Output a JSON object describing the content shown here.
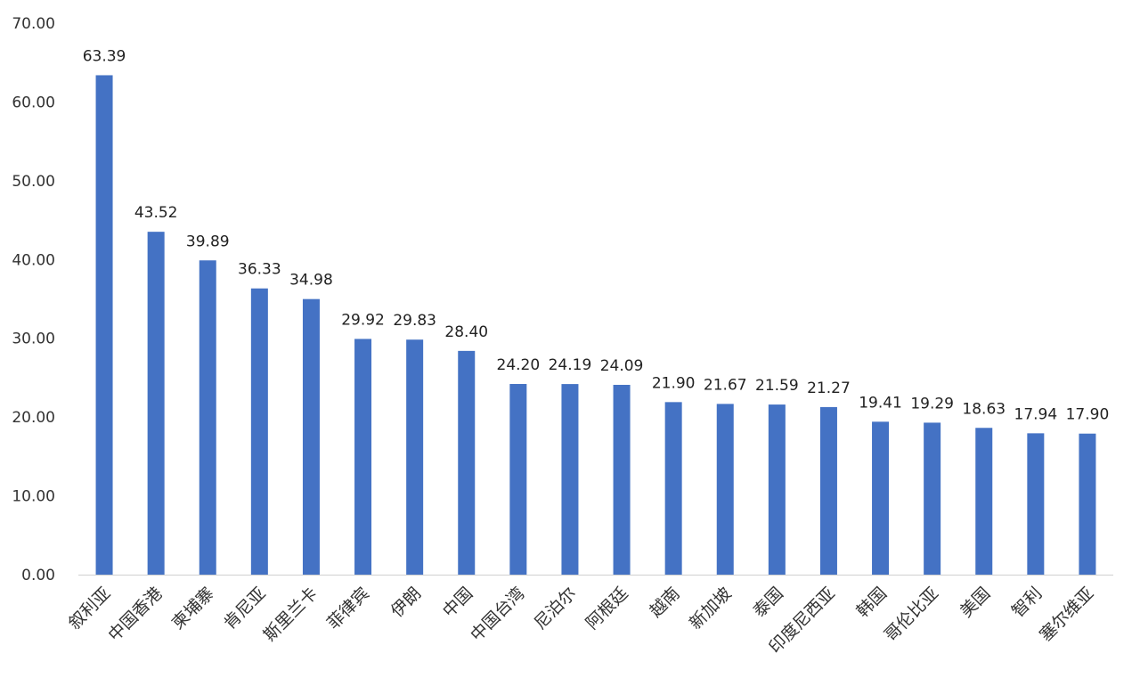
{
  "chart_data": {
    "type": "bar",
    "title": "",
    "xlabel": "",
    "ylabel": "",
    "ylim": [
      0,
      70
    ],
    "yticks": [
      "0.00",
      "10.00",
      "20.00",
      "30.00",
      "40.00",
      "50.00",
      "60.00",
      "70.00"
    ],
    "grid": false,
    "bar_color": "#4472C4",
    "categories": [
      "叙利亚",
      "中国香港",
      "柬埔寨",
      "肯尼亚",
      "斯里兰卡",
      "菲律宾",
      "伊朗",
      "中国",
      "中国台湾",
      "尼泊尔",
      "阿根廷",
      "越南",
      "新加坡",
      "泰国",
      "印度尼西亚",
      "韩国",
      "哥伦比亚",
      "美国",
      "智利",
      "塞尔维亚"
    ],
    "values": [
      63.39,
      43.52,
      39.89,
      36.33,
      34.98,
      29.92,
      29.83,
      28.4,
      24.2,
      24.19,
      24.09,
      21.9,
      21.67,
      21.59,
      21.27,
      19.41,
      19.29,
      18.63,
      17.94,
      17.9
    ],
    "data_labels": [
      "63.39",
      "43.52",
      "39.89",
      "36.33",
      "34.98",
      "29.92",
      "29.83",
      "28.40",
      "24.20",
      "24.19",
      "24.09",
      "21.90",
      "21.67",
      "21.59",
      "21.27",
      "19.41",
      "19.29",
      "18.63",
      "17.94",
      "17.90"
    ]
  }
}
